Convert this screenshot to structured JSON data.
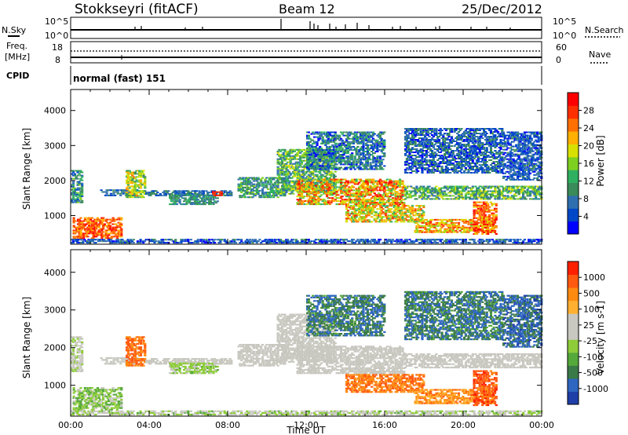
{
  "header": {
    "title": "Stokkseyri (fitACF)",
    "beam": "Beam 12",
    "date": "25/Dec/2012"
  },
  "mini_panels": {
    "nsky": {
      "label": "N.Sky",
      "tick_top": "10^5",
      "tick_bottom": "10^0",
      "right_tick_top": "10^5",
      "right_tick_bottom": "10^0",
      "right_label": "N.Search"
    },
    "freq": {
      "label_line1": "Freq.",
      "label_line2": "[MHz]",
      "tick_top": "18",
      "tick_bottom": "8",
      "right_tick_top": "60",
      "right_tick_bottom": "0",
      "right_label": "Nave"
    },
    "cpid": {
      "label": "CPID",
      "text": "normal (fast) 151"
    }
  },
  "chart_data": [
    {
      "type": "heatmap",
      "panel": "power",
      "xlabel": "",
      "ylabel": "Slant Range [km]",
      "x_ticks": [
        "00:00",
        "04:00",
        "08:00",
        "12:00",
        "16:00",
        "20:00",
        "00:00"
      ],
      "y_ticks": [
        1000,
        2000,
        3000,
        4000
      ],
      "xlim_hours": [
        0,
        24
      ],
      "ylim_km": [
        180,
        4600
      ],
      "colorbar": {
        "label": "Power [dB]",
        "ticks": [
          4,
          8,
          12,
          16,
          20,
          24,
          28
        ],
        "range": [
          0,
          32
        ],
        "colors": [
          "#0000ff",
          "#0048c8",
          "#2f6fb0",
          "#3a8a5a",
          "#2fb060",
          "#7ed020",
          "#d8e000",
          "#ffb000",
          "#ff7000",
          "#ff3000",
          "#ff0000"
        ]
      }
    },
    {
      "type": "heatmap",
      "panel": "velocity",
      "xlabel": "Time UT",
      "ylabel": "Slant Range [km]",
      "x_ticks": [
        "00:00",
        "04:00",
        "08:00",
        "12:00",
        "16:00",
        "20:00",
        "00:00"
      ],
      "y_ticks": [
        1000,
        2000,
        3000,
        4000
      ],
      "xlim_hours": [
        0,
        24
      ],
      "ylim_km": [
        180,
        4600
      ],
      "colorbar": {
        "label": "Velocity [m s-1]",
        "ticks": [
          "1000",
          "500",
          "100",
          "25",
          "-25",
          "-100",
          "-500",
          "-1000"
        ],
        "colors": [
          "#1f3fa8",
          "#2e66c0",
          "#3a7a48",
          "#55a83a",
          "#8ecc3a",
          "#c8c8c0",
          "#c8c8c0",
          "#ffb030",
          "#ff8a10",
          "#ff5a10",
          "#ff2000"
        ]
      }
    }
  ]
}
